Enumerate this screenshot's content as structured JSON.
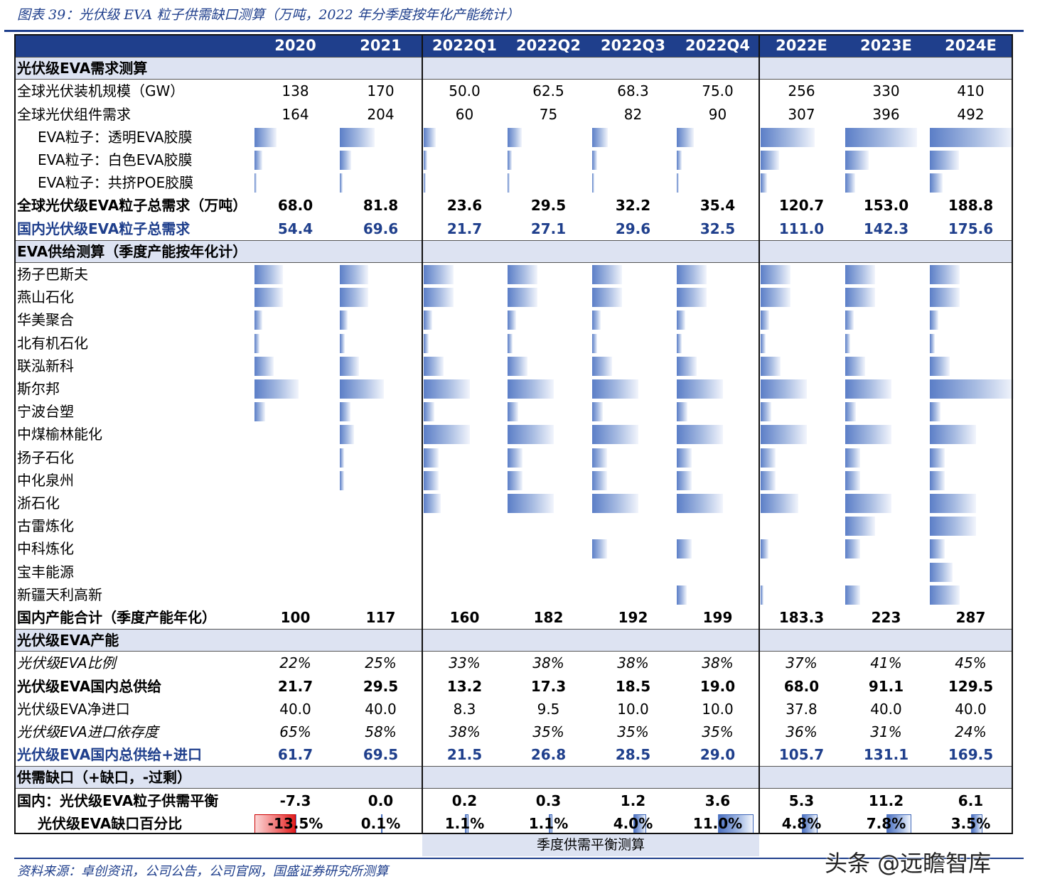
{
  "figure": {
    "title": "图表 39：光伏级 EVA 粒子供需缺口测算（万吨，2022 年分季度按年化产能统计）",
    "source": "资料来源：卓创资讯，公司公告，公司官网，国盛证券研究所测算",
    "footnote_box": "季度供需平衡测算",
    "watermark": "头条 @远瞻智库"
  },
  "table": {
    "columns": [
      "2020",
      "2021",
      "2022Q1",
      "2022Q2",
      "2022Q3",
      "2022Q4",
      "2022E",
      "2023E",
      "2024E"
    ],
    "sections": {
      "demand": "光伏级EVA需求测算",
      "supply": "EVA供给测算（季度产能按年化计）",
      "pv_capacity": "光伏级EVA产能",
      "gap": "供需缺口（+缺口，-过剩）"
    },
    "demand_rows": [
      {
        "label": "全球光伏装机规模（GW）",
        "style": "normal",
        "values": [
          "138",
          "170",
          "50.0",
          "62.5",
          "68.3",
          "75.0",
          "256",
          "330",
          "410"
        ]
      },
      {
        "label": "全球光伏组件需求",
        "style": "normal",
        "values": [
          "164",
          "204",
          "60",
          "75",
          "82",
          "90",
          "307",
          "396",
          "492"
        ]
      }
    ],
    "demand_bar_rows": [
      {
        "label": "EVA粒子：透明EVA胶膜",
        "levels": [
          0.28,
          0.44,
          0.14,
          0.17,
          0.19,
          0.2,
          0.64,
          0.86,
          1.0
        ]
      },
      {
        "label": "EVA粒子：白色EVA胶膜",
        "levels": [
          0.1,
          0.14,
          0.04,
          0.05,
          0.06,
          0.06,
          0.22,
          0.28,
          0.35
        ]
      },
      {
        "label": "EVA粒子：共挤POE胶膜",
        "levels": [
          0.03,
          0.04,
          0.02,
          0.02,
          0.02,
          0.02,
          0.08,
          0.12,
          0.15
        ]
      }
    ],
    "demand_total_rows": [
      {
        "label": "全球光伏级EVA粒子总需求（万吨）",
        "style": "bold",
        "values": [
          "68.0",
          "81.8",
          "23.6",
          "29.5",
          "32.2",
          "35.4",
          "120.7",
          "153.0",
          "188.8"
        ]
      },
      {
        "label": "国内光伏级EVA粒子总需求",
        "style": "blue",
        "values": [
          "54.4",
          "69.6",
          "21.7",
          "27.1",
          "29.6",
          "32.5",
          "111.0",
          "142.3",
          "175.6"
        ]
      }
    ],
    "supply_bar_rows": [
      {
        "label": "扬子巴斯夫",
        "levels": [
          0.36,
          0.36,
          0.36,
          0.36,
          0.36,
          0.36,
          0.36,
          0.36,
          0.36
        ]
      },
      {
        "label": "燕山石化",
        "levels": [
          0.36,
          0.36,
          0.36,
          0.36,
          0.36,
          0.36,
          0.36,
          0.36,
          0.36
        ]
      },
      {
        "label": "华美聚合",
        "levels": [
          0.1,
          0.1,
          0.1,
          0.1,
          0.1,
          0.1,
          0.1,
          0.1,
          0.1
        ]
      },
      {
        "label": "北有机石化",
        "levels": [
          0.06,
          0.06,
          0.06,
          0.06,
          0.06,
          0.06,
          0.06,
          0.06,
          0.06
        ]
      },
      {
        "label": "联泓新科",
        "levels": [
          0.24,
          0.24,
          0.24,
          0.24,
          0.24,
          0.24,
          0.24,
          0.24,
          0.24
        ]
      },
      {
        "label": "斯尔邦",
        "levels": [
          0.55,
          0.55,
          0.55,
          0.55,
          0.55,
          0.55,
          0.55,
          0.55,
          1.0
        ]
      },
      {
        "label": "宁波台塑",
        "levels": [
          0.13,
          0.13,
          0.13,
          0.13,
          0.13,
          0.13,
          0.13,
          0.13,
          0.13
        ]
      },
      {
        "label": "中煤榆林能化",
        "levels": [
          0.0,
          0.18,
          0.55,
          0.55,
          0.55,
          0.55,
          0.55,
          0.55,
          0.55
        ]
      },
      {
        "label": "扬子石化",
        "levels": [
          0.0,
          0.05,
          0.18,
          0.18,
          0.18,
          0.18,
          0.18,
          0.18,
          0.18
        ]
      },
      {
        "label": "中化泉州",
        "levels": [
          0.0,
          0.05,
          0.18,
          0.18,
          0.18,
          0.18,
          0.18,
          0.18,
          0.18
        ]
      },
      {
        "label": "浙石化",
        "levels": [
          0.0,
          0.0,
          0.2,
          0.55,
          0.55,
          0.55,
          0.45,
          0.55,
          0.55
        ]
      },
      {
        "label": "古雷炼化",
        "levels": [
          0.0,
          0.0,
          0.0,
          0.0,
          0.0,
          0.0,
          0.0,
          0.36,
          0.55
        ]
      },
      {
        "label": "中科炼化",
        "levels": [
          0.0,
          0.0,
          0.0,
          0.0,
          0.18,
          0.18,
          0.09,
          0.18,
          0.18
        ]
      },
      {
        "label": "宝丰能源",
        "levels": [
          0.0,
          0.0,
          0.0,
          0.0,
          0.0,
          0.0,
          0.0,
          0.0,
          0.27
        ]
      },
      {
        "label": "新疆天利高新",
        "levels": [
          0.0,
          0.0,
          0.0,
          0.0,
          0.0,
          0.12,
          0.03,
          0.18,
          0.36
        ]
      }
    ],
    "supply_total_row": {
      "label": "国内产能合计（季度产能年化）",
      "style": "bold",
      "values": [
        "100",
        "117",
        "160",
        "182",
        "192",
        "199",
        "183.3",
        "223",
        "287"
      ]
    },
    "pv_rows": [
      {
        "label": "光伏级EVA比例",
        "style": "ital",
        "values": [
          "22%",
          "25%",
          "33%",
          "38%",
          "38%",
          "38%",
          "37%",
          "41%",
          "45%"
        ]
      },
      {
        "label": "光伏级EVA国内总供给",
        "style": "bold",
        "values": [
          "21.7",
          "29.5",
          "13.2",
          "17.3",
          "18.5",
          "19.0",
          "68.0",
          "91.1",
          "129.5"
        ]
      },
      {
        "label": "光伏级EVA净进口",
        "style": "normal",
        "values": [
          "40.0",
          "40.0",
          "8.3",
          "9.5",
          "10.0",
          "10.0",
          "37.8",
          "40.0",
          "40.0"
        ]
      },
      {
        "label": "光伏级EVA进口依存度",
        "style": "ital",
        "values": [
          "65%",
          "58%",
          "38%",
          "35%",
          "35%",
          "35%",
          "36%",
          "31%",
          "24%"
        ]
      },
      {
        "label": "光伏级EVA国内总供给+进口",
        "style": "blue",
        "values": [
          "61.7",
          "69.5",
          "21.5",
          "26.8",
          "28.5",
          "29.0",
          "105.7",
          "131.1",
          "169.5"
        ]
      }
    ],
    "gap_row": {
      "label": "国内：光伏级EVA粒子供需平衡",
      "style": "bold",
      "values": [
        "-7.3",
        "0.0",
        "0.2",
        "0.3",
        "1.2",
        "3.6",
        "5.3",
        "11.2",
        "6.1"
      ]
    },
    "gap_pct_row": {
      "label": "光伏级EVA缺口百分比",
      "style": "bold",
      "values": [
        "-13.5%",
        "0.1%",
        "1.1%",
        "1.1%",
        "4.0%",
        "11.0%",
        "4.8%",
        "7.8%",
        "3.5%"
      ],
      "percents": [
        -13.5,
        0.1,
        1.1,
        1.1,
        4.0,
        11.0,
        4.8,
        7.8,
        3.5
      ]
    }
  }
}
